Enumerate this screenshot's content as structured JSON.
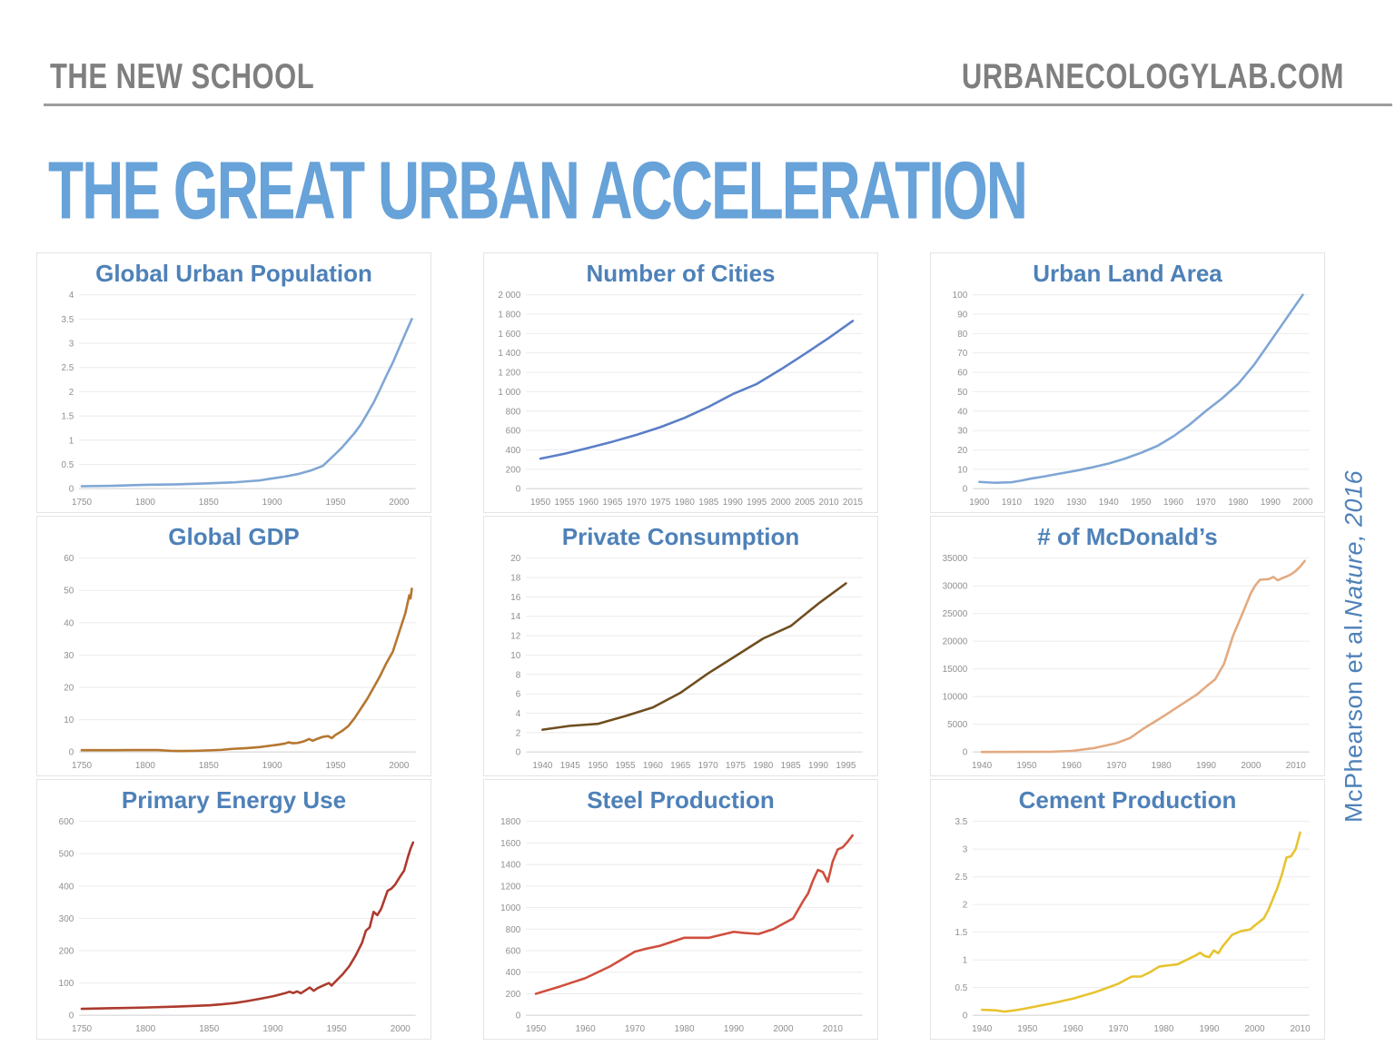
{
  "header": {
    "left": "THE NEW SCHOOL",
    "right": "URBANECOLOGYLAB.COM"
  },
  "title": "THE GREAT URBAN ACCELERATION",
  "citation": {
    "authors": "McPhearson et al. ",
    "source": "Nature, 2016"
  },
  "accent_colors": {
    "title_blue": "#67a2d8",
    "chart_title_blue": "#4e81b8",
    "brand_gray": "#7f7f7f"
  },
  "chart_data": [
    {
      "type": "line",
      "title": "Global Urban Population",
      "color": "#7fa6d5",
      "xlim": [
        1748,
        2013
      ],
      "ylim": [
        0,
        4
      ],
      "xticks": [
        1750,
        1800,
        1850,
        1900,
        1950,
        2000
      ],
      "yticks": [
        0,
        0.5,
        1,
        1.5,
        2,
        2.5,
        3,
        3.5,
        4
      ],
      "ytick_labels": [
        "0",
        "0.5",
        "1",
        "1.5",
        "2",
        "2.5",
        "3",
        "3.5",
        "4"
      ],
      "x": [
        1750,
        1775,
        1800,
        1825,
        1850,
        1870,
        1890,
        1900,
        1910,
        1920,
        1930,
        1940,
        1950,
        1955,
        1960,
        1965,
        1970,
        1975,
        1980,
        1985,
        1990,
        1995,
        2000,
        2005,
        2010
      ],
      "y": [
        0.05,
        0.06,
        0.08,
        0.09,
        0.11,
        0.13,
        0.17,
        0.21,
        0.25,
        0.3,
        0.37,
        0.47,
        0.72,
        0.85,
        1.0,
        1.15,
        1.33,
        1.55,
        1.78,
        2.05,
        2.33,
        2.6,
        2.9,
        3.2,
        3.5
      ]
    },
    {
      "type": "line",
      "title": "Number of Cities",
      "color": "#5b7fc7",
      "xlim": [
        1947,
        2017
      ],
      "ylim": [
        0,
        2000
      ],
      "xticks": [
        1950,
        1955,
        1960,
        1965,
        1970,
        1975,
        1980,
        1985,
        1990,
        1995,
        2000,
        2005,
        2010,
        2015
      ],
      "yticks": [
        0,
        200,
        400,
        600,
        800,
        1000,
        1200,
        1400,
        1600,
        1800,
        2000
      ],
      "ytick_labels": [
        "0",
        "200",
        "400",
        "600",
        "800",
        "1 000",
        "1 200",
        "1 400",
        "1 600",
        "1 800",
        "2 000"
      ],
      "x": [
        1950,
        1955,
        1960,
        1965,
        1970,
        1975,
        1980,
        1985,
        1990,
        1995,
        2000,
        2005,
        2010,
        2015
      ],
      "y": [
        310,
        360,
        420,
        485,
        555,
        635,
        730,
        845,
        975,
        1080,
        1230,
        1390,
        1555,
        1730
      ]
    },
    {
      "type": "line",
      "title": "Urban Land Area",
      "color": "#7fa6d5",
      "xlim": [
        1898,
        2002
      ],
      "ylim": [
        0,
        100
      ],
      "xticks": [
        1900,
        1910,
        1920,
        1930,
        1940,
        1950,
        1960,
        1970,
        1980,
        1990,
        2000
      ],
      "yticks": [
        0,
        10,
        20,
        30,
        40,
        50,
        60,
        70,
        80,
        90,
        100
      ],
      "ytick_labels": [
        "0",
        "10",
        "20",
        "30",
        "40",
        "50",
        "60",
        "70",
        "80",
        "90",
        "100"
      ],
      "x": [
        1900,
        1905,
        1910,
        1913,
        1916,
        1920,
        1925,
        1930,
        1935,
        1940,
        1945,
        1950,
        1955,
        1960,
        1965,
        1970,
        1975,
        1980,
        1985,
        1990,
        1995,
        2000
      ],
      "y": [
        3.5,
        3.0,
        3.3,
        4.2,
        5.2,
        6.3,
        7.8,
        9.3,
        11,
        13,
        15.5,
        18.5,
        22,
        27,
        33,
        40,
        46.5,
        54,
        64,
        76,
        88,
        100
      ]
    },
    {
      "type": "line",
      "title": "Global GDP",
      "color": "#b5762f",
      "xlim": [
        1748,
        2013
      ],
      "ylim": [
        0,
        60
      ],
      "xticks": [
        1750,
        1800,
        1850,
        1900,
        1950,
        2000
      ],
      "yticks": [
        0,
        10,
        20,
        30,
        40,
        50,
        60
      ],
      "ytick_labels": [
        "0",
        "10",
        "20",
        "30",
        "40",
        "50",
        "60"
      ],
      "x": [
        1750,
        1770,
        1790,
        1810,
        1820,
        1825,
        1830,
        1840,
        1850,
        1860,
        1870,
        1875,
        1880,
        1890,
        1900,
        1905,
        1910,
        1913,
        1916,
        1920,
        1925,
        1929,
        1932,
        1935,
        1940,
        1944,
        1947,
        1950,
        1955,
        1960,
        1965,
        1970,
        1975,
        1980,
        1985,
        1990,
        1995,
        2000,
        2005,
        2008,
        2009,
        2010
      ],
      "y": [
        0.55,
        0.55,
        0.6,
        0.6,
        0.35,
        0.3,
        0.3,
        0.35,
        0.5,
        0.65,
        1.0,
        1.1,
        1.2,
        1.5,
        2.0,
        2.3,
        2.6,
        3.0,
        2.7,
        2.8,
        3.3,
        4.0,
        3.5,
        4.0,
        4.7,
        4.9,
        4.3,
        5.3,
        6.5,
        8.0,
        10.5,
        13.5,
        16.5,
        20,
        23.5,
        27.5,
        31,
        37,
        43,
        48.5,
        47.5,
        50.5
      ]
    },
    {
      "type": "line",
      "title": "Private Consumption",
      "color": "#6f4e1f",
      "xlim": [
        1937,
        1998
      ],
      "ylim": [
        0,
        20
      ],
      "xticks": [
        1940,
        1945,
        1950,
        1955,
        1960,
        1965,
        1970,
        1975,
        1980,
        1985,
        1990,
        1995
      ],
      "yticks": [
        0,
        2,
        4,
        6,
        8,
        10,
        12,
        14,
        16,
        18,
        20
      ],
      "ytick_labels": [
        "0",
        "2",
        "4",
        "6",
        "8",
        "10",
        "12",
        "14",
        "16",
        "18",
        "20"
      ],
      "x": [
        1940,
        1945,
        1950,
        1955,
        1960,
        1965,
        1970,
        1975,
        1980,
        1985,
        1990,
        1995
      ],
      "y": [
        2.3,
        2.7,
        2.9,
        3.7,
        4.6,
        6.1,
        8.1,
        9.9,
        11.7,
        13.0,
        15.3,
        17.4
      ]
    },
    {
      "type": "line",
      "title": "# of McDonald’s",
      "color": "#e3aa80",
      "xlim": [
        1938,
        2013
      ],
      "ylim": [
        0,
        35000
      ],
      "xticks": [
        1940,
        1950,
        1960,
        1970,
        1980,
        1990,
        2000,
        2010
      ],
      "yticks": [
        0,
        5000,
        10000,
        15000,
        20000,
        25000,
        30000,
        35000
      ],
      "ytick_labels": [
        "0",
        "5000",
        "10000",
        "15000",
        "20000",
        "25000",
        "30000",
        "35000"
      ],
      "x": [
        1940,
        1948,
        1955,
        1960,
        1965,
        1970,
        1973,
        1976,
        1980,
        1984,
        1988,
        1990,
        1992,
        1994,
        1996,
        1998,
        2000,
        2001,
        2002,
        2004,
        2005,
        2006,
        2007,
        2008,
        2009,
        2010,
        2011,
        2012
      ],
      "y": [
        0,
        10,
        30,
        200,
        700,
        1600,
        2500,
        4200,
        6200,
        8300,
        10400,
        11800,
        13100,
        15900,
        21000,
        24800,
        28700,
        30100,
        31100,
        31200,
        31600,
        31000,
        31400,
        31700,
        32100,
        32700,
        33500,
        34500
      ]
    },
    {
      "type": "line",
      "title": "Primary Energy Use",
      "color": "#ac3a2d",
      "xlim": [
        1748,
        2012
      ],
      "ylim": [
        0,
        600
      ],
      "xticks": [
        1750,
        1800,
        1850,
        1900,
        1950,
        2000
      ],
      "yticks": [
        0,
        100,
        200,
        300,
        400,
        500,
        600
      ],
      "ytick_labels": [
        "0",
        "100",
        "200",
        "300",
        "400",
        "500",
        "600"
      ],
      "x": [
        1750,
        1775,
        1800,
        1825,
        1850,
        1860,
        1870,
        1880,
        1890,
        1900,
        1905,
        1910,
        1913,
        1916,
        1919,
        1922,
        1925,
        1929,
        1932,
        1935,
        1940,
        1944,
        1946,
        1950,
        1955,
        1960,
        1965,
        1970,
        1973,
        1976,
        1979,
        1982,
        1985,
        1990,
        1993,
        1996,
        2000,
        2003,
        2006,
        2008,
        2010
      ],
      "y": [
        20,
        22,
        24,
        27,
        31,
        34,
        38,
        44,
        51,
        59,
        64,
        69,
        73,
        69,
        74,
        68,
        76,
        86,
        76,
        84,
        93,
        100,
        92,
        108,
        128,
        152,
        185,
        225,
        262,
        272,
        320,
        310,
        330,
        385,
        392,
        405,
        430,
        448,
        490,
        515,
        535
      ]
    },
    {
      "type": "line",
      "title": "Steel Production",
      "color": "#cf4f3e",
      "xlim": [
        1948,
        2016
      ],
      "ylim": [
        0,
        1800
      ],
      "xticks": [
        1950,
        1960,
        1970,
        1980,
        1990,
        2000,
        2010
      ],
      "yticks": [
        0,
        200,
        400,
        600,
        800,
        1000,
        1200,
        1400,
        1600,
        1800
      ],
      "ytick_labels": [
        "0",
        "200",
        "400",
        "600",
        "800",
        "1000",
        "1200",
        "1400",
        "1600",
        "1800"
      ],
      "x": [
        1950,
        1955,
        1960,
        1965,
        1970,
        1972,
        1975,
        1980,
        1985,
        1990,
        1992,
        1995,
        1998,
        2000,
        2002,
        2004,
        2005,
        2006,
        2007,
        2008,
        2009,
        2010,
        2011,
        2012,
        2013,
        2014
      ],
      "y": [
        200,
        270,
        345,
        455,
        590,
        615,
        645,
        720,
        720,
        775,
        765,
        755,
        800,
        850,
        900,
        1060,
        1130,
        1250,
        1350,
        1330,
        1240,
        1430,
        1540,
        1560,
        1610,
        1670
      ]
    },
    {
      "type": "line",
      "title": "Cement Production",
      "color": "#e7c32f",
      "xlim": [
        1938,
        2012
      ],
      "ylim": [
        0,
        3.5
      ],
      "xticks": [
        1940,
        1950,
        1960,
        1970,
        1980,
        1990,
        2000,
        2010
      ],
      "yticks": [
        0,
        0.5,
        1,
        1.5,
        2,
        2.5,
        3,
        3.5
      ],
      "ytick_labels": [
        "0",
        "0.5",
        "1",
        "1.5",
        "2",
        "2.5",
        "3",
        "3.5"
      ],
      "x": [
        1940,
        1943,
        1945,
        1948,
        1950,
        1955,
        1960,
        1965,
        1970,
        1972,
        1973,
        1975,
        1977,
        1979,
        1981,
        1983,
        1985,
        1987,
        1988,
        1989,
        1990,
        1991,
        1992,
        1993,
        1995,
        1997,
        1999,
        2000,
        2002,
        2003,
        2005,
        2006,
        2007,
        2008,
        2009,
        2010
      ],
      "y": [
        0.1,
        0.09,
        0.065,
        0.1,
        0.13,
        0.21,
        0.3,
        0.42,
        0.57,
        0.66,
        0.7,
        0.7,
        0.78,
        0.88,
        0.9,
        0.92,
        1.0,
        1.08,
        1.13,
        1.07,
        1.05,
        1.17,
        1.12,
        1.25,
        1.45,
        1.52,
        1.55,
        1.62,
        1.75,
        1.9,
        2.3,
        2.55,
        2.85,
        2.87,
        3.0,
        3.3
      ]
    }
  ]
}
